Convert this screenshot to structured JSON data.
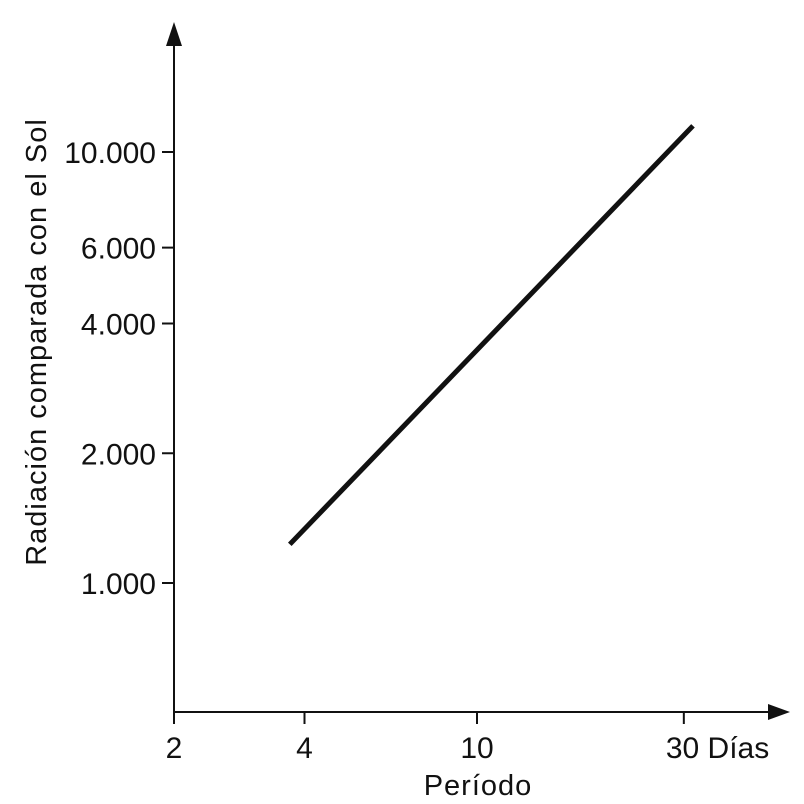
{
  "chart_data": {
    "type": "line",
    "title": "",
    "xlabel": "Período",
    "ylabel": "Radiación comparada con el Sol",
    "x_scale": "log",
    "y_scale": "log",
    "xlim": [
      2,
      38
    ],
    "ylim": [
      500,
      19000
    ],
    "x_ticks": [
      {
        "value": 2,
        "label": "2"
      },
      {
        "value": 4,
        "label": "4"
      },
      {
        "value": 10,
        "label": "10"
      },
      {
        "value": 30,
        "label": "30 Días"
      }
    ],
    "y_ticks": [
      {
        "value": 1000,
        "label": "1.000"
      },
      {
        "value": 2000,
        "label": "2.000"
      },
      {
        "value": 4000,
        "label": "4.000"
      },
      {
        "value": 6000,
        "label": "6.000"
      },
      {
        "value": 10000,
        "label": "10.000"
      }
    ],
    "grid": false,
    "legend": "none",
    "series": [
      {
        "x": [
          3.7,
          31.5
        ],
        "y": [
          1230,
          11500
        ]
      }
    ]
  }
}
